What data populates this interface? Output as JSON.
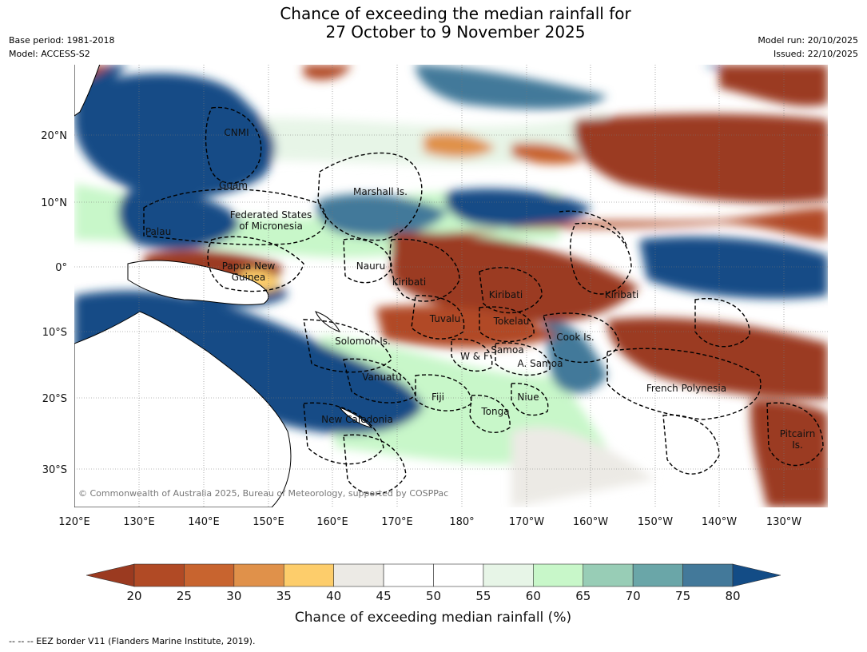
{
  "title_line1": "Chance of exceeding the median rainfall for",
  "title_line2": "27 October to 9 November 2025",
  "base_period": "Base period: 1981-2018",
  "model": "Model: ACCESS-S2",
  "model_run": "Model run: 20/10/2025",
  "issued": "Issued: 22/10/2025",
  "copyright": "© Commonwealth of Australia 2025, Bureau of Meteorology, supported by COSPPac",
  "footer": "--  --  -- EEZ border V11 (Flanders Marine Institute, 2019).",
  "lat_ticks": [
    "20°N",
    "10°N",
    "0°",
    "10°S",
    "20°S",
    "30°S"
  ],
  "lon_ticks": [
    "120°E",
    "130°E",
    "140°E",
    "150°E",
    "160°E",
    "170°E",
    "180°",
    "170°W",
    "160°W",
    "150°W",
    "140°W",
    "130°W"
  ],
  "regions": [
    "CNMI",
    "Guam",
    "Marshall Is.",
    "Federated States",
    "of Micronesia",
    "Palau",
    "Papua New",
    "Guinea",
    "Nauru",
    "Kiribati",
    "Kiribati",
    "Kiribati",
    "Tuvalu",
    "Tokelau",
    "Cook Is.",
    "Solomon Is.",
    "W & F",
    "Samoa",
    "A. Samoa",
    "Vanuatu",
    "Fiji",
    "Niue",
    "Tonga",
    "New Caledonia",
    "French Polynesia",
    "Pitcairn",
    "Is."
  ],
  "colorbar": {
    "label": "Chance of exceeding median rainfall (%)",
    "ticks": [
      "20",
      "25",
      "30",
      "35",
      "40",
      "45",
      "50",
      "55",
      "60",
      "65",
      "70",
      "75",
      "80"
    ],
    "colors": [
      "#9b3a20",
      "#b14a25",
      "#c8642f",
      "#e0914a",
      "#fdcd6b",
      "#eceae5",
      "#ffffff",
      "#ffffff",
      "#e7f5e7",
      "#c8f7c9",
      "#98cdb6",
      "#6aa6a8",
      "#43799a",
      "#134c86"
    ]
  }
}
